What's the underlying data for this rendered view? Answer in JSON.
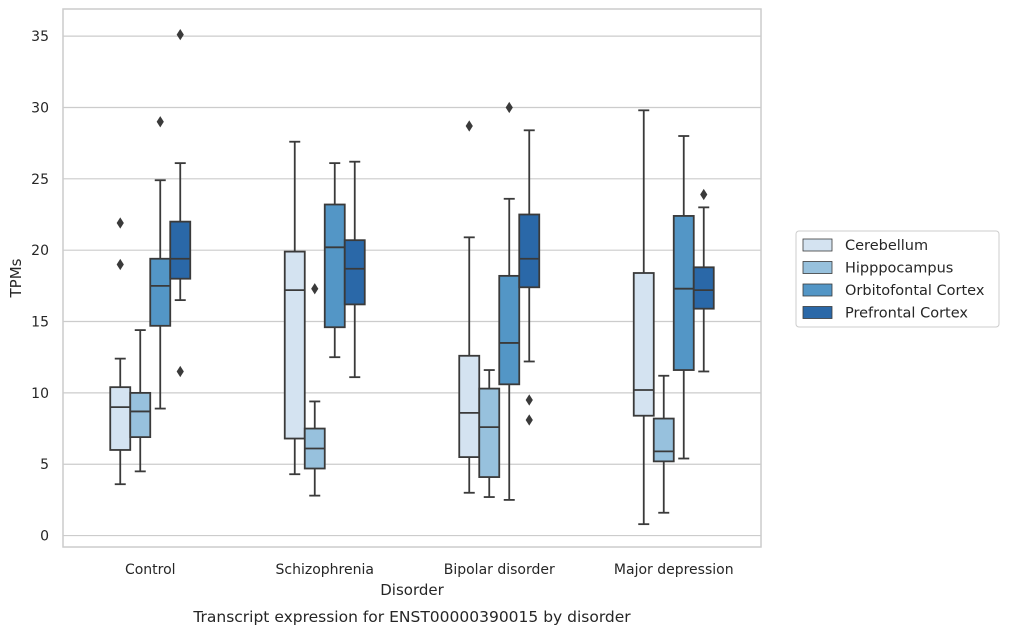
{
  "chart_data": {
    "type": "box",
    "xlabel": "Disorder",
    "ylabel": "TPMs",
    "caption": "Transcript expression for ENST00000390015 by disorder",
    "categories": [
      "Control",
      "Schizophrenia",
      "Bipolar disorder",
      "Major depression"
    ],
    "yticks": [
      0,
      5,
      10,
      15,
      20,
      25,
      30,
      35
    ],
    "ylim": [
      -0.8,
      36.9
    ],
    "grid": "horizontal",
    "legend_position": "right",
    "series": [
      {
        "name": "Cerebellum",
        "color": "#d4e3f1",
        "boxes": [
          {
            "whislo": 3.6,
            "q1": 6.0,
            "med": 9.0,
            "q3": 10.4,
            "whishi": 12.4,
            "fliers": [
              19.0,
              21.9
            ]
          },
          {
            "whislo": 4.3,
            "q1": 6.8,
            "med": 17.2,
            "q3": 19.9,
            "whishi": 27.6,
            "fliers": []
          },
          {
            "whislo": 3.0,
            "q1": 5.5,
            "med": 8.6,
            "q3": 12.6,
            "whishi": 20.9,
            "fliers": [
              28.7
            ]
          },
          {
            "whislo": 0.8,
            "q1": 8.4,
            "med": 10.2,
            "q3": 18.4,
            "whishi": 29.8,
            "fliers": []
          }
        ]
      },
      {
        "name": "Hipppocampus",
        "color": "#97c1dd",
        "boxes": [
          {
            "whislo": 4.5,
            "q1": 6.9,
            "med": 8.7,
            "q3": 10.0,
            "whishi": 14.4,
            "fliers": []
          },
          {
            "whislo": 2.8,
            "q1": 4.7,
            "med": 6.1,
            "q3": 7.5,
            "whishi": 9.4,
            "fliers": [
              17.3
            ]
          },
          {
            "whislo": 2.7,
            "q1": 4.1,
            "med": 7.6,
            "q3": 10.3,
            "whishi": 11.6,
            "fliers": []
          },
          {
            "whislo": 1.6,
            "q1": 5.2,
            "med": 5.9,
            "q3": 8.2,
            "whishi": 11.2,
            "fliers": []
          }
        ]
      },
      {
        "name": "Orbitofontal Cortex",
        "color": "#5396c6",
        "boxes": [
          {
            "whislo": 8.9,
            "q1": 14.7,
            "med": 17.5,
            "q3": 19.4,
            "whishi": 24.9,
            "fliers": [
              29.0
            ]
          },
          {
            "whislo": 12.5,
            "q1": 14.6,
            "med": 20.2,
            "q3": 23.2,
            "whishi": 26.1,
            "fliers": []
          },
          {
            "whislo": 2.5,
            "q1": 10.6,
            "med": 13.5,
            "q3": 18.2,
            "whishi": 23.6,
            "fliers": [
              30.0
            ]
          },
          {
            "whislo": 5.4,
            "q1": 11.6,
            "med": 17.3,
            "q3": 22.4,
            "whishi": 28.0,
            "fliers": []
          }
        ]
      },
      {
        "name": "Prefrontal Cortex",
        "color": "#2a68a8",
        "boxes": [
          {
            "whislo": 16.5,
            "q1": 18.0,
            "med": 19.4,
            "q3": 22.0,
            "whishi": 26.1,
            "fliers": [
              11.5,
              35.1
            ]
          },
          {
            "whislo": 11.1,
            "q1": 16.2,
            "med": 18.7,
            "q3": 20.7,
            "whishi": 26.2,
            "fliers": []
          },
          {
            "whislo": 12.2,
            "q1": 17.4,
            "med": 19.4,
            "q3": 22.5,
            "whishi": 28.4,
            "fliers": [
              8.1,
              9.5
            ]
          },
          {
            "whislo": 11.5,
            "q1": 15.9,
            "med": 17.2,
            "q3": 18.8,
            "whishi": 23.0,
            "fliers": [
              23.9
            ]
          }
        ]
      }
    ]
  }
}
